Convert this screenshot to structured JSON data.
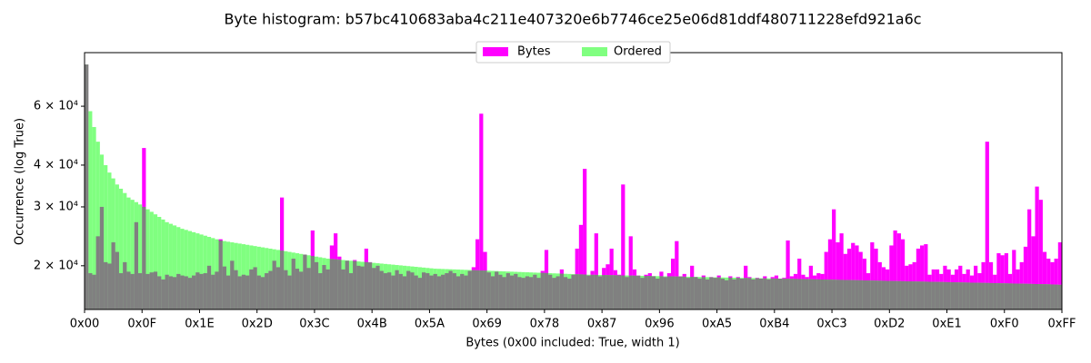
{
  "chart_data": {
    "type": "histogram",
    "title": "Byte histogram: b57bc410683aba4c211e407320e6b7746ce25e06d81ddf480711228efd921a6c",
    "x_label": "Bytes (0x00 included: True, width 1)",
    "y_label": "Occurrence (log True)",
    "log_y": true,
    "legend_position": "upper center",
    "xlim": [
      0,
      255
    ],
    "xticks": [
      {
        "value": 0,
        "label": "0x00"
      },
      {
        "value": 15,
        "label": "0x0F"
      },
      {
        "value": 30,
        "label": "0x1E"
      },
      {
        "value": 45,
        "label": "0x2D"
      },
      {
        "value": 60,
        "label": "0x3C"
      },
      {
        "value": 75,
        "label": "0x4B"
      },
      {
        "value": 90,
        "label": "0x5A"
      },
      {
        "value": 105,
        "label": "0x69"
      },
      {
        "value": 120,
        "label": "0x78"
      },
      {
        "value": 135,
        "label": "0x87"
      },
      {
        "value": 150,
        "label": "0x96"
      },
      {
        "value": 165,
        "label": "0xA5"
      },
      {
        "value": 180,
        "label": "0xB4"
      },
      {
        "value": 195,
        "label": "0xC3"
      },
      {
        "value": 210,
        "label": "0xD2"
      },
      {
        "value": 225,
        "label": "0xE1"
      },
      {
        "value": 240,
        "label": "0xF0"
      },
      {
        "value": 255,
        "label": "0xFF"
      }
    ],
    "ylim": [
      14800,
      86800
    ],
    "yticks": [
      {
        "value": 20000,
        "label": "2 × 10⁴"
      },
      {
        "value": 30000,
        "label": "3 × 10⁴"
      },
      {
        "value": 40000,
        "label": "4 × 10⁴"
      },
      {
        "value": 60000,
        "label": "6 × 10⁴"
      }
    ],
    "series": [
      {
        "name": "Bytes",
        "color": "#ff00ff",
        "values": [
          80000,
          19000,
          18800,
          24500,
          30000,
          20500,
          20300,
          23500,
          22000,
          19000,
          20500,
          19200,
          18900,
          27000,
          19000,
          45000,
          18900,
          19100,
          19200,
          18600,
          18200,
          18800,
          18600,
          18500,
          18900,
          18700,
          18600,
          18400,
          18700,
          19100,
          18900,
          19000,
          20000,
          18800,
          19200,
          24000,
          19900,
          18700,
          20700,
          19400,
          18600,
          18800,
          18700,
          19500,
          19800,
          18700,
          18500,
          19000,
          19300,
          20700,
          19800,
          32000,
          19400,
          18700,
          21000,
          19600,
          19200,
          21600,
          19700,
          25500,
          20500,
          19000,
          20100,
          19500,
          23000,
          25000,
          21300,
          19500,
          20700,
          19000,
          20800,
          20000,
          19900,
          22500,
          20500,
          19700,
          20000,
          19300,
          19000,
          19100,
          18700,
          19400,
          18900,
          18600,
          19300,
          19100,
          18700,
          18400,
          19100,
          19000,
          18700,
          18900,
          18600,
          18800,
          19000,
          19300,
          19000,
          18600,
          18900,
          18700,
          19300,
          19800,
          24000,
          57000,
          22000,
          19100,
          18600,
          19200,
          18800,
          18500,
          19000,
          18700,
          18900,
          18500,
          18400,
          18600,
          18500,
          18800,
          18400,
          19300,
          22300,
          18800,
          18400,
          18600,
          19500,
          18500,
          18300,
          18800,
          22500,
          26500,
          39000,
          18700,
          19300,
          25000,
          18600,
          19700,
          20200,
          22500,
          19400,
          18800,
          35000,
          18500,
          24500,
          19500,
          18700,
          18400,
          18800,
          19000,
          18600,
          18300,
          19200,
          18500,
          19000,
          21000,
          23700,
          18600,
          18900,
          18400,
          20000,
          18500,
          18300,
          18700,
          18200,
          18500,
          18400,
          18700,
          18300,
          18100,
          18600,
          18200,
          18500,
          18300,
          20000,
          18500,
          18200,
          18400,
          18300,
          18600,
          18200,
          18500,
          18700,
          18300,
          18400,
          23800,
          18600,
          18900,
          21000,
          18800,
          18500,
          20000,
          18700,
          19000,
          18900,
          22000,
          24000,
          29500,
          23500,
          25000,
          21700,
          22500,
          23400,
          23000,
          22000,
          21000,
          19000,
          23500,
          22500,
          20500,
          19800,
          19500,
          23000,
          25500,
          25000,
          24000,
          20000,
          20200,
          20500,
          22500,
          23000,
          23200,
          18800,
          19500,
          19500,
          18900,
          20000,
          19500,
          18800,
          19500,
          20000,
          18900,
          19500,
          18700,
          20000,
          19000,
          20500,
          47000,
          20500,
          18800,
          21800,
          21500,
          21800,
          18900,
          22300,
          19500,
          20500,
          22800,
          29500,
          24500,
          34500,
          31500,
          22000,
          21000,
          20500,
          21000,
          23500,
          21500
        ]
      },
      {
        "name": "Ordered",
        "color": "#80ff80",
        "values": [
          80000,
          58000,
          52000,
          47000,
          43000,
          40000,
          38000,
          36500,
          35000,
          34000,
          33000,
          32000,
          31500,
          31000,
          30500,
          30000,
          29500,
          29000,
          28500,
          28000,
          27500,
          27000,
          26700,
          26400,
          26100,
          25800,
          25600,
          25400,
          25200,
          25000,
          24800,
          24600,
          24400,
          24200,
          24000,
          23800,
          23700,
          23600,
          23500,
          23400,
          23300,
          23200,
          23100,
          23000,
          22900,
          22800,
          22700,
          22600,
          22500,
          22400,
          22300,
          22200,
          22100,
          22000,
          21900,
          21800,
          21700,
          21600,
          21500,
          21400,
          21300,
          21200,
          21100,
          21000,
          20950,
          20900,
          20850,
          20800,
          20750,
          20700,
          20650,
          20600,
          20550,
          20500,
          20450,
          20400,
          20350,
          20300,
          20250,
          20200,
          20150,
          20100,
          20050,
          20000,
          19950,
          19900,
          19850,
          19800,
          19750,
          19700,
          19650,
          19600,
          19580,
          19560,
          19540,
          19520,
          19500,
          19480,
          19460,
          19440,
          19420,
          19400,
          19380,
          19360,
          19340,
          19320,
          19300,
          19280,
          19260,
          19240,
          19220,
          19200,
          19180,
          19160,
          19140,
          19120,
          19100,
          19080,
          19060,
          19040,
          19020,
          19000,
          18980,
          18960,
          18940,
          18920,
          18900,
          18880,
          18860,
          18840,
          18820,
          18800,
          18790,
          18780,
          18770,
          18760,
          18750,
          18740,
          18730,
          18720,
          18710,
          18700,
          18690,
          18680,
          18670,
          18660,
          18650,
          18640,
          18630,
          18620,
          18610,
          18600,
          18590,
          18580,
          18570,
          18560,
          18550,
          18540,
          18530,
          18520,
          18510,
          18500,
          18490,
          18480,
          18470,
          18460,
          18450,
          18440,
          18430,
          18420,
          18410,
          18400,
          18390,
          18380,
          18370,
          18360,
          18350,
          18340,
          18330,
          18320,
          18310,
          18300,
          18290,
          18280,
          18270,
          18260,
          18250,
          18240,
          18230,
          18220,
          18210,
          18200,
          18190,
          18180,
          18170,
          18160,
          18150,
          18140,
          18130,
          18120,
          18110,
          18100,
          18090,
          18080,
          18070,
          18060,
          18050,
          18040,
          18030,
          18020,
          18010,
          18000,
          17990,
          17980,
          17970,
          17960,
          17950,
          17940,
          17930,
          17920,
          17910,
          17900,
          17890,
          17880,
          17870,
          17860,
          17850,
          17840,
          17830,
          17820,
          17810,
          17800,
          17790,
          17780,
          17770,
          17760,
          17750,
          17740,
          17730,
          17720,
          17710,
          17700,
          17690,
          17680,
          17670,
          17660,
          17650,
          17640,
          17630,
          17620,
          17610,
          17600,
          17580,
          17560,
          17540,
          17500
        ]
      }
    ]
  }
}
